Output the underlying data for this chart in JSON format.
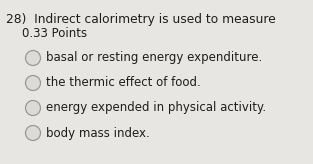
{
  "question_number": "28)",
  "question_line1": "Indirect calorimetry is used to measure",
  "question_line2": "0.33 Points",
  "options": [
    "basal or resting energy expenditure.",
    "the thermic effect of food.",
    "energy expended in physical activity.",
    "body mass index."
  ],
  "bg_color": "#e8e6e3",
  "text_color": "#1e1e1e",
  "font_size_question": 8.8,
  "font_size_points": 8.5,
  "font_size_options": 8.5,
  "circle_edge_color": "#999999",
  "circle_face_color": "#dddbd8"
}
